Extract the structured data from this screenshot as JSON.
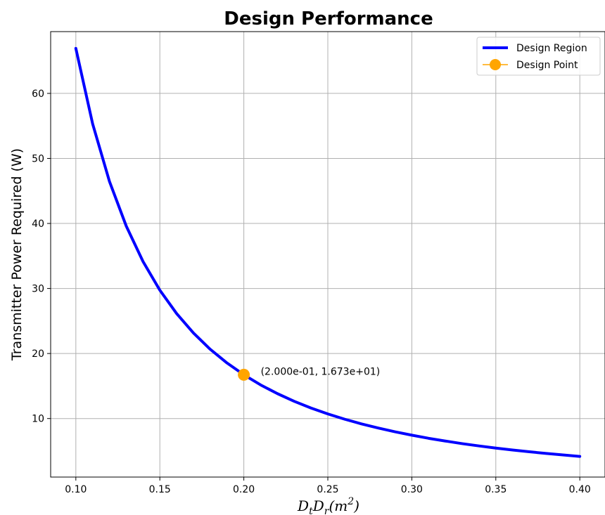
{
  "chart_data": {
    "type": "line",
    "title": "Design Performance",
    "xlabel_main": "D",
    "xlabel_sub1": "t",
    "xlabel_mid": "D",
    "xlabel_sub2": "r",
    "xlabel_unit": "(m",
    "xlabel_sup": "2",
    "xlabel_close": ")",
    "ylabel": "Transmitter Power Required (W)",
    "xlim": [
      0.085,
      0.415
    ],
    "ylim": [
      1.0,
      69.5
    ],
    "x_ticks": [
      0.1,
      0.15,
      0.2,
      0.25,
      0.3,
      0.35,
      0.4
    ],
    "x_tick_labels": [
      "0.10",
      "0.15",
      "0.20",
      "0.25",
      "0.30",
      "0.35",
      "0.40"
    ],
    "y_ticks": [
      10,
      20,
      30,
      40,
      50,
      60
    ],
    "y_tick_labels": [
      "10",
      "20",
      "30",
      "40",
      "50",
      "60"
    ],
    "grid": true,
    "legend_position": "top-right",
    "series": [
      {
        "name": "Design Region",
        "color": "#0000ff",
        "x": [
          0.1,
          0.11,
          0.12,
          0.13,
          0.14,
          0.15,
          0.16,
          0.17,
          0.18,
          0.19,
          0.2,
          0.21,
          0.22,
          0.23,
          0.24,
          0.25,
          0.26,
          0.27,
          0.28,
          0.29,
          0.3,
          0.31,
          0.32,
          0.33,
          0.34,
          0.35,
          0.36,
          0.37,
          0.38,
          0.39,
          0.4
        ],
        "y": [
          66.92,
          55.31,
          46.47,
          39.6,
          34.14,
          29.74,
          26.14,
          23.16,
          20.65,
          18.54,
          16.73,
          15.17,
          13.83,
          12.65,
          11.62,
          10.71,
          9.9,
          9.18,
          8.54,
          7.96,
          7.44,
          6.96,
          6.54,
          6.14,
          5.79,
          5.46,
          5.16,
          4.89,
          4.63,
          4.4,
          4.18
        ]
      }
    ],
    "design_point": {
      "name": "Design Point",
      "color": "#ffa500",
      "x": 0.2,
      "y": 16.73,
      "label": "(2.000e-01, 1.673e+01)"
    }
  }
}
